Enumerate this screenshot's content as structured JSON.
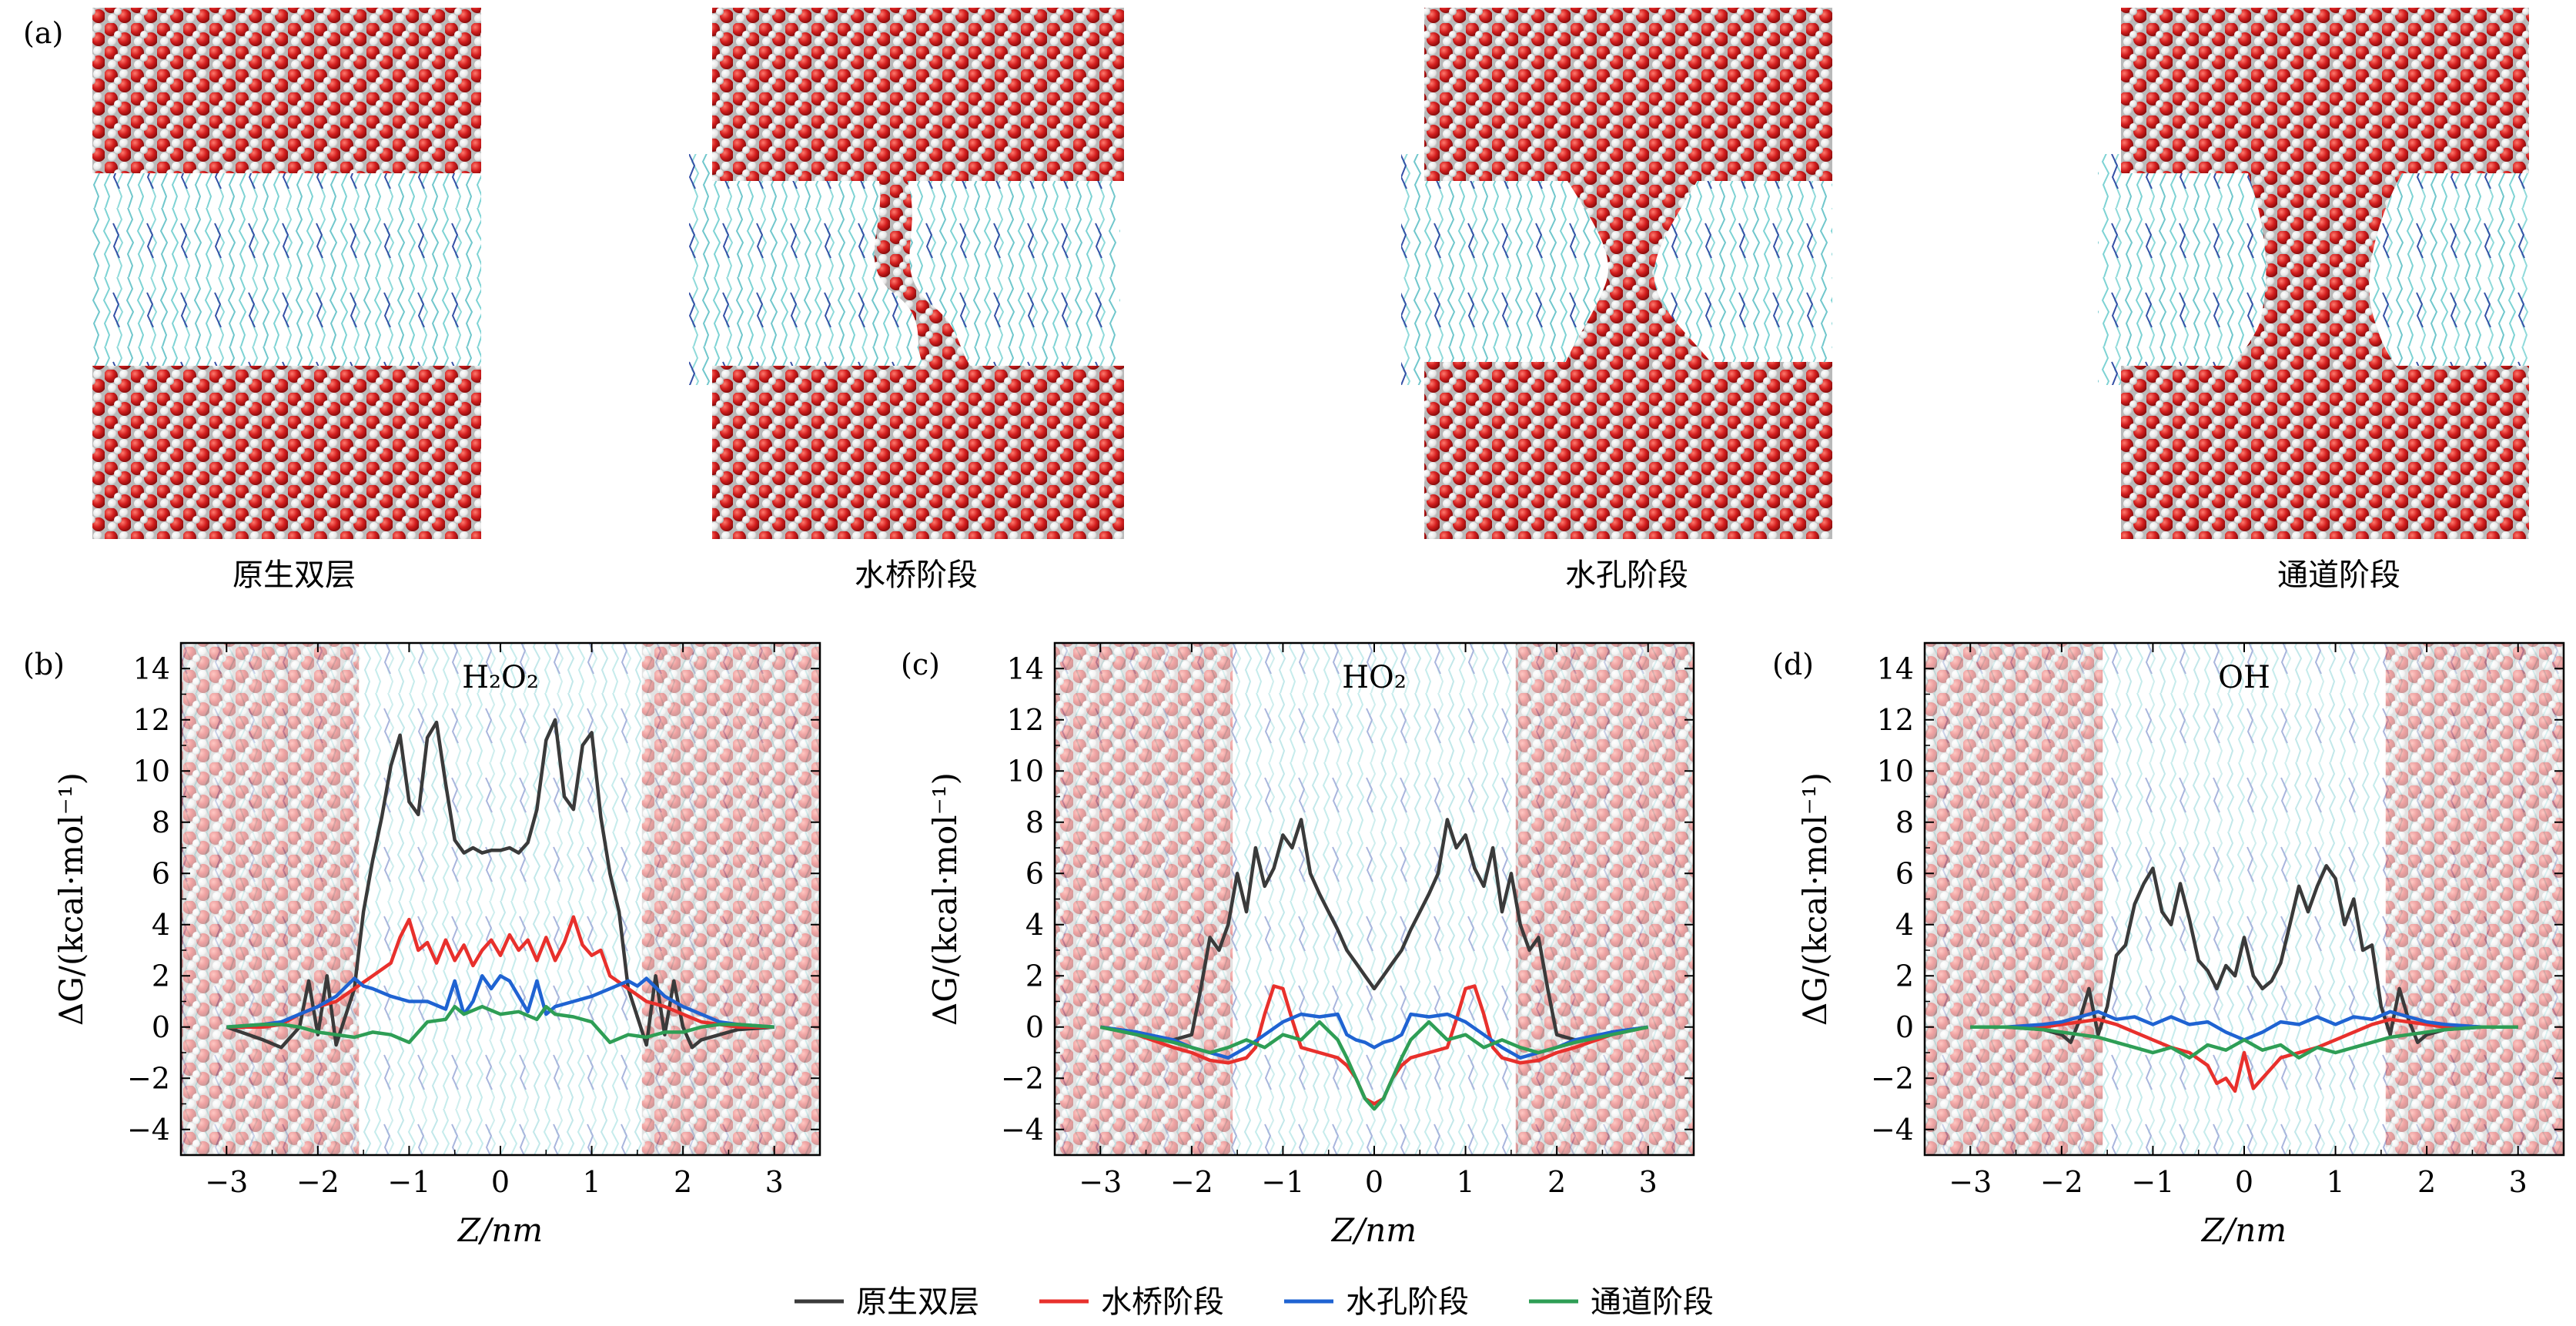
{
  "panel_labels": [
    "(a)",
    "(b)",
    "(c)",
    "(d)"
  ],
  "snapshots": {
    "captions": [
      "原生双层",
      "水桥阶段",
      "水孔阶段",
      "通道阶段"
    ],
    "stages": [
      "intact",
      "bridge",
      "pore",
      "channel"
    ]
  },
  "colors": {
    "native": "#3a3a3a",
    "bridge": "#e8302c",
    "pore": "#1f63d2",
    "channel": "#2e9e55",
    "water_o": "#d42020",
    "water_h": "#f2f2f2",
    "lipid_tail": "#6ecfd2",
    "lipid_head": "#2d4aa8"
  },
  "axes": {
    "xlabel": "Z/nm",
    "ylabel": "ΔG/(kcal·mol⁻¹)",
    "xticks": [
      "−3",
      "−2",
      "−1",
      "0",
      "1",
      "2",
      "3"
    ],
    "yticks": [
      "−4",
      "−2",
      "0",
      "2",
      "4",
      "6",
      "8",
      "10",
      "12",
      "14"
    ]
  },
  "legend": {
    "items": [
      "原生双层",
      "水桥阶段",
      "水孔阶段",
      "通道阶段"
    ],
    "placement": "bottom-center"
  },
  "chart_data": [
    {
      "type": "line",
      "panel": "(b)",
      "title": "H₂O₂",
      "xlabel": "Z/nm",
      "ylabel": "ΔG/(kcal·mol⁻¹)",
      "xlim": [
        -3.5,
        3.5
      ],
      "ylim": [
        -5,
        15
      ],
      "series": [
        {
          "name": "原生双层",
          "x": [
            -3,
            -2.6,
            -2.4,
            -2.2,
            -2.1,
            -2.0,
            -1.9,
            -1.8,
            -1.7,
            -1.6,
            -1.5,
            -1.4,
            -1.3,
            -1.2,
            -1.1,
            -1.0,
            -0.9,
            -0.8,
            -0.7,
            -0.6,
            -0.5,
            -0.4,
            -0.3,
            -0.2,
            -0.1,
            0,
            0.1,
            0.2,
            0.3,
            0.4,
            0.5,
            0.6,
            0.7,
            0.8,
            0.9,
            1.0,
            1.1,
            1.2,
            1.3,
            1.4,
            1.5,
            1.6,
            1.7,
            1.8,
            1.9,
            2.0,
            2.1,
            2.2,
            2.4,
            2.6,
            3
          ],
          "y": [
            0,
            -0.5,
            -0.8,
            0,
            1.8,
            -0.3,
            2.0,
            -0.7,
            0.4,
            1.5,
            4.5,
            6.5,
            8.2,
            10.2,
            11.4,
            8.8,
            8.3,
            11.3,
            11.9,
            9.5,
            7.3,
            6.8,
            7.0,
            6.8,
            6.9,
            6.9,
            7.0,
            6.8,
            7.2,
            8.5,
            11.2,
            12.0,
            9.0,
            8.5,
            11.0,
            11.5,
            8.2,
            6.0,
            4.5,
            1.5,
            0.4,
            -0.7,
            2.0,
            -0.3,
            1.8,
            0,
            -0.8,
            -0.5,
            -0.3,
            -0.1,
            0
          ]
        },
        {
          "name": "水桥阶段",
          "x": [
            -3,
            -2.6,
            -2.4,
            -2.2,
            -2.0,
            -1.8,
            -1.6,
            -1.4,
            -1.2,
            -1.1,
            -1.0,
            -0.9,
            -0.8,
            -0.7,
            -0.6,
            -0.5,
            -0.4,
            -0.3,
            -0.2,
            -0.1,
            0,
            0.1,
            0.2,
            0.3,
            0.4,
            0.5,
            0.6,
            0.7,
            0.8,
            0.9,
            1.0,
            1.1,
            1.2,
            1.4,
            1.6,
            1.8,
            2.0,
            2.2,
            2.4,
            2.6,
            3
          ],
          "y": [
            0,
            0,
            0.1,
            0.5,
            0.8,
            1.0,
            1.5,
            2.0,
            2.5,
            3.5,
            4.2,
            3.0,
            3.3,
            2.5,
            3.4,
            2.6,
            3.2,
            2.4,
            3.0,
            3.4,
            2.8,
            3.6,
            3.0,
            3.4,
            2.6,
            3.5,
            2.6,
            3.3,
            4.3,
            3.2,
            2.8,
            3.0,
            2.0,
            1.5,
            1.0,
            0.8,
            0.5,
            0.2,
            0.1,
            0,
            0
          ]
        },
        {
          "name": "水孔阶段",
          "x": [
            -3,
            -2.6,
            -2.4,
            -2.2,
            -2.0,
            -1.8,
            -1.6,
            -1.5,
            -1.4,
            -1.2,
            -1.0,
            -0.8,
            -0.6,
            -0.5,
            -0.4,
            -0.3,
            -0.2,
            -0.1,
            0,
            0.1,
            0.2,
            0.3,
            0.4,
            0.5,
            0.6,
            0.8,
            1.0,
            1.2,
            1.4,
            1.5,
            1.6,
            1.8,
            2.0,
            2.2,
            2.4,
            2.6,
            3
          ],
          "y": [
            0,
            0.1,
            0.2,
            0.5,
            0.8,
            1.2,
            1.9,
            1.6,
            1.5,
            1.2,
            1.0,
            1.0,
            0.7,
            1.8,
            0.5,
            1.0,
            2.0,
            1.5,
            2.0,
            1.8,
            1.2,
            0.6,
            1.8,
            0.5,
            0.8,
            1.0,
            1.2,
            1.5,
            1.8,
            1.6,
            1.9,
            1.2,
            0.8,
            0.5,
            0.2,
            0.1,
            0
          ]
        },
        {
          "name": "通道阶段",
          "x": [
            -3,
            -2.6,
            -2.4,
            -2.2,
            -2.0,
            -1.8,
            -1.6,
            -1.4,
            -1.2,
            -1.0,
            -0.8,
            -0.6,
            -0.5,
            -0.4,
            -0.2,
            0,
            0.2,
            0.4,
            0.5,
            0.6,
            0.8,
            1.0,
            1.2,
            1.4,
            1.6,
            1.8,
            2.0,
            2.2,
            2.4,
            2.6,
            3
          ],
          "y": [
            0,
            0.1,
            0.1,
            0,
            -0.2,
            -0.3,
            -0.4,
            -0.2,
            -0.3,
            -0.6,
            0.2,
            0.3,
            0.8,
            0.5,
            0.8,
            0.5,
            0.6,
            0.3,
            0.8,
            0.5,
            0.4,
            0.2,
            -0.6,
            -0.3,
            -0.4,
            -0.2,
            -0.2,
            0,
            0.1,
            0.1,
            0
          ]
        }
      ]
    },
    {
      "type": "line",
      "panel": "(c)",
      "title": "HO₂",
      "xlabel": "Z/nm",
      "ylabel": "ΔG/(kcal·mol⁻¹)",
      "xlim": [
        -3.5,
        3.5
      ],
      "ylim": [
        -5,
        15
      ],
      "series": [
        {
          "name": "原生双层",
          "x": [
            -3,
            -2.6,
            -2.4,
            -2.2,
            -2.0,
            -1.9,
            -1.8,
            -1.7,
            -1.6,
            -1.5,
            -1.4,
            -1.3,
            -1.2,
            -1.1,
            -1.0,
            -0.9,
            -0.8,
            -0.7,
            -0.6,
            -0.5,
            -0.4,
            -0.3,
            -0.2,
            -0.1,
            0,
            0.1,
            0.2,
            0.3,
            0.4,
            0.5,
            0.6,
            0.7,
            0.8,
            0.9,
            1.0,
            1.1,
            1.2,
            1.3,
            1.4,
            1.5,
            1.6,
            1.7,
            1.8,
            1.9,
            2.0,
            2.2,
            2.4,
            2.6,
            3
          ],
          "y": [
            0,
            -0.2,
            -0.5,
            -0.5,
            -0.3,
            1.5,
            3.5,
            3.0,
            4.0,
            6.0,
            4.5,
            7.0,
            5.5,
            6.2,
            7.5,
            7.0,
            8.1,
            6.0,
            5.2,
            4.5,
            3.8,
            3.0,
            2.5,
            2.0,
            1.5,
            2.0,
            2.5,
            3.0,
            3.8,
            4.5,
            5.2,
            6.0,
            8.1,
            7.0,
            7.5,
            6.2,
            5.5,
            7.0,
            4.5,
            6.0,
            4.0,
            3.0,
            3.5,
            1.5,
            -0.3,
            -0.5,
            -0.5,
            -0.2,
            0
          ]
        },
        {
          "name": "水桥阶段",
          "x": [
            -3,
            -2.6,
            -2.2,
            -2.0,
            -1.8,
            -1.6,
            -1.4,
            -1.3,
            -1.2,
            -1.1,
            -1.0,
            -0.9,
            -0.8,
            -0.6,
            -0.4,
            -0.3,
            -0.2,
            -0.1,
            0,
            0.1,
            0.2,
            0.3,
            0.4,
            0.6,
            0.8,
            0.9,
            1.0,
            1.1,
            1.2,
            1.3,
            1.4,
            1.6,
            1.8,
            2.0,
            2.2,
            2.6,
            3
          ],
          "y": [
            0,
            -0.3,
            -0.8,
            -1.0,
            -1.3,
            -1.4,
            -1.2,
            -0.8,
            0.5,
            1.6,
            1.5,
            0.3,
            -0.8,
            -1.0,
            -1.2,
            -1.5,
            -2.0,
            -2.8,
            -3.0,
            -2.8,
            -2.0,
            -1.5,
            -1.2,
            -1.0,
            -0.8,
            0.3,
            1.5,
            1.6,
            0.5,
            -0.8,
            -1.2,
            -1.4,
            -1.3,
            -1.0,
            -0.8,
            -0.3,
            0
          ]
        },
        {
          "name": "水孔阶段",
          "x": [
            -3,
            -2.6,
            -2.2,
            -2.0,
            -1.8,
            -1.6,
            -1.4,
            -1.2,
            -1.0,
            -0.8,
            -0.6,
            -0.4,
            -0.3,
            -0.2,
            -0.1,
            0,
            0.1,
            0.2,
            0.3,
            0.4,
            0.6,
            0.8,
            1.0,
            1.2,
            1.4,
            1.6,
            1.8,
            2.0,
            2.2,
            2.6,
            3
          ],
          "y": [
            0,
            -0.2,
            -0.5,
            -0.8,
            -1.0,
            -1.2,
            -0.8,
            -0.3,
            0.2,
            0.5,
            0.4,
            0.5,
            -0.3,
            -0.5,
            -0.6,
            -0.8,
            -0.6,
            -0.5,
            -0.3,
            0.5,
            0.4,
            0.5,
            0.2,
            -0.3,
            -0.8,
            -1.2,
            -1.0,
            -0.8,
            -0.5,
            -0.2,
            0
          ]
        },
        {
          "name": "通道阶段",
          "x": [
            -3,
            -2.6,
            -2.2,
            -2.0,
            -1.8,
            -1.6,
            -1.4,
            -1.2,
            -1.0,
            -0.8,
            -0.6,
            -0.4,
            -0.3,
            -0.2,
            -0.1,
            0,
            0.1,
            0.2,
            0.3,
            0.4,
            0.6,
            0.8,
            1.0,
            1.2,
            1.4,
            1.6,
            1.8,
            2.0,
            2.2,
            2.6,
            3
          ],
          "y": [
            0,
            -0.3,
            -0.6,
            -0.8,
            -1.0,
            -0.8,
            -0.5,
            -0.8,
            -0.3,
            -0.5,
            0.2,
            -0.5,
            -1.2,
            -2.0,
            -2.8,
            -3.2,
            -2.8,
            -2.0,
            -1.2,
            -0.5,
            0.2,
            -0.5,
            -0.3,
            -0.8,
            -0.5,
            -0.8,
            -1.0,
            -0.8,
            -0.6,
            -0.3,
            0
          ]
        }
      ]
    },
    {
      "type": "line",
      "panel": "(d)",
      "title": "OH",
      "xlabel": "Z/nm",
      "ylabel": "ΔG/(kcal·mol⁻¹)",
      "xlim": [
        -3.5,
        3.5
      ],
      "ylim": [
        -5,
        15
      ],
      "series": [
        {
          "name": "原生双层",
          "x": [
            -3,
            -2.6,
            -2.2,
            -2.0,
            -1.9,
            -1.8,
            -1.7,
            -1.6,
            -1.5,
            -1.4,
            -1.3,
            -1.2,
            -1.1,
            -1.0,
            -0.9,
            -0.8,
            -0.7,
            -0.6,
            -0.5,
            -0.4,
            -0.3,
            -0.2,
            -0.1,
            0,
            0.1,
            0.2,
            0.3,
            0.4,
            0.5,
            0.6,
            0.7,
            0.8,
            0.9,
            1.0,
            1.1,
            1.2,
            1.3,
            1.4,
            1.5,
            1.6,
            1.7,
            1.8,
            1.9,
            2.0,
            2.2,
            2.6,
            3
          ],
          "y": [
            0,
            0,
            -0.1,
            -0.3,
            -0.6,
            0.3,
            1.5,
            -0.3,
            0.8,
            2.8,
            3.2,
            4.8,
            5.6,
            6.2,
            4.5,
            4.0,
            5.6,
            4.2,
            2.6,
            2.2,
            1.5,
            2.4,
            2.0,
            3.5,
            2.0,
            1.5,
            1.8,
            2.5,
            4.0,
            5.5,
            4.5,
            5.5,
            6.3,
            5.8,
            4.0,
            5.0,
            3.0,
            3.2,
            0.8,
            -0.3,
            1.5,
            0.3,
            -0.6,
            -0.3,
            -0.1,
            0,
            0
          ]
        },
        {
          "name": "水桥阶段",
          "x": [
            -3,
            -2.6,
            -2.2,
            -2.0,
            -1.8,
            -1.6,
            -1.4,
            -1.2,
            -1.0,
            -0.8,
            -0.6,
            -0.4,
            -0.3,
            -0.2,
            -0.1,
            0,
            0.1,
            0.2,
            0.3,
            0.4,
            0.6,
            0.8,
            1.0,
            1.2,
            1.4,
            1.6,
            1.8,
            2.0,
            2.2,
            2.6,
            3
          ],
          "y": [
            0,
            0,
            0,
            0.1,
            0.2,
            0.3,
            0.1,
            -0.2,
            -0.5,
            -0.8,
            -1.0,
            -1.5,
            -2.2,
            -2.0,
            -2.5,
            -1.0,
            -2.4,
            -2.0,
            -1.6,
            -1.2,
            -1.0,
            -0.8,
            -0.5,
            -0.2,
            0.1,
            0.3,
            0.2,
            0.1,
            0,
            0,
            0
          ]
        },
        {
          "name": "水孔阶段",
          "x": [
            -3,
            -2.6,
            -2.2,
            -2.0,
            -1.8,
            -1.6,
            -1.4,
            -1.2,
            -1.0,
            -0.8,
            -0.6,
            -0.4,
            -0.2,
            0,
            0.2,
            0.4,
            0.6,
            0.8,
            1.0,
            1.2,
            1.4,
            1.6,
            1.8,
            2.0,
            2.2,
            2.6,
            3
          ],
          "y": [
            0,
            0,
            0.1,
            0.2,
            0.4,
            0.6,
            0.3,
            0.4,
            0.1,
            0.4,
            0.1,
            0.2,
            -0.2,
            -0.5,
            -0.2,
            0.2,
            0.1,
            0.4,
            0.1,
            0.4,
            0.3,
            0.6,
            0.4,
            0.2,
            0.1,
            0,
            0
          ]
        },
        {
          "name": "通道阶段",
          "x": [
            -3,
            -2.6,
            -2.2,
            -2.0,
            -1.8,
            -1.6,
            -1.4,
            -1.2,
            -1.0,
            -0.8,
            -0.6,
            -0.4,
            -0.2,
            0,
            0.2,
            0.4,
            0.6,
            0.8,
            1.0,
            1.2,
            1.4,
            1.6,
            1.8,
            2.0,
            2.2,
            2.6,
            3
          ],
          "y": [
            0,
            0,
            -0.1,
            -0.2,
            -0.3,
            -0.4,
            -0.6,
            -0.8,
            -1.0,
            -0.8,
            -1.2,
            -0.7,
            -0.9,
            -0.5,
            -0.9,
            -0.7,
            -1.2,
            -0.8,
            -1.0,
            -0.8,
            -0.6,
            -0.4,
            -0.3,
            -0.2,
            -0.1,
            0,
            0
          ]
        }
      ]
    }
  ]
}
